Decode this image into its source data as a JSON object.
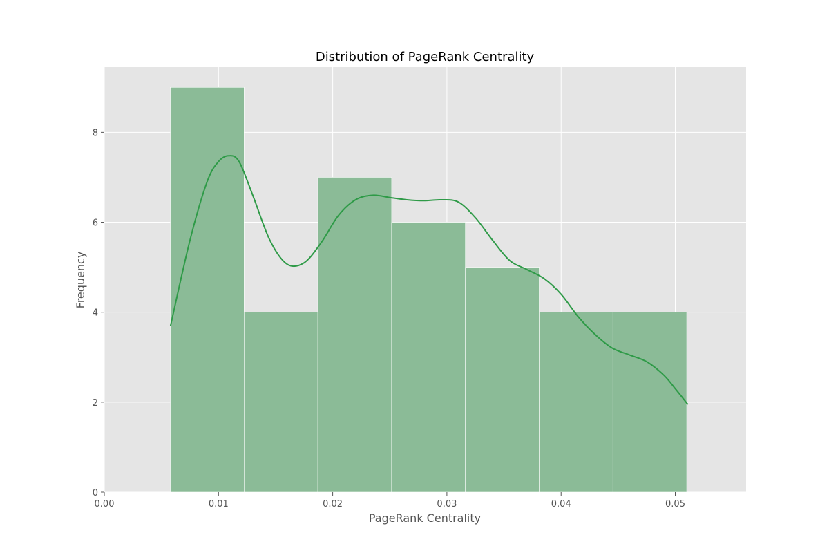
{
  "chart_data": {
    "type": "bar",
    "subtype": "histogram_with_kde",
    "title": "Distribution of PageRank Centrality",
    "xlabel": "PageRank Centrality",
    "ylabel": "Frequency",
    "xlim": [
      0.0,
      0.0562
    ],
    "ylim": [
      0,
      9.45
    ],
    "x_ticks": [
      0.0,
      0.01,
      0.02,
      0.03,
      0.04,
      0.05
    ],
    "x_tick_labels": [
      "0.00",
      "0.01",
      "0.02",
      "0.03",
      "0.04",
      "0.05"
    ],
    "y_ticks": [
      0,
      2,
      4,
      6,
      8
    ],
    "y_tick_labels": [
      "0",
      "2",
      "4",
      "6",
      "8"
    ],
    "grid": true,
    "style": "ggplot",
    "bins": [
      {
        "x0": 0.00578,
        "x1": 0.01224,
        "count": 9
      },
      {
        "x0": 0.01224,
        "x1": 0.0187,
        "count": 4
      },
      {
        "x0": 0.0187,
        "x1": 0.02516,
        "count": 7
      },
      {
        "x0": 0.02516,
        "x1": 0.03162,
        "count": 6
      },
      {
        "x0": 0.03162,
        "x1": 0.03808,
        "count": 5
      },
      {
        "x0": 0.03808,
        "x1": 0.04454,
        "count": 4
      },
      {
        "x0": 0.04454,
        "x1": 0.051,
        "count": 4
      }
    ],
    "kde": {
      "x": [
        0.0058,
        0.0075,
        0.009,
        0.01,
        0.0109,
        0.0118,
        0.013,
        0.0145,
        0.016,
        0.0175,
        0.019,
        0.0205,
        0.022,
        0.0235,
        0.025,
        0.0265,
        0.028,
        0.0295,
        0.031,
        0.0325,
        0.034,
        0.0355,
        0.037,
        0.0385,
        0.04,
        0.0415,
        0.043,
        0.0445,
        0.046,
        0.0475,
        0.049,
        0.05,
        0.0511
      ],
      "y": [
        3.7,
        5.6,
        6.9,
        7.35,
        7.48,
        7.35,
        6.6,
        5.6,
        5.07,
        5.1,
        5.55,
        6.15,
        6.5,
        6.6,
        6.55,
        6.5,
        6.48,
        6.5,
        6.45,
        6.1,
        5.6,
        5.15,
        4.95,
        4.75,
        4.4,
        3.9,
        3.5,
        3.2,
        3.05,
        2.9,
        2.6,
        2.3,
        1.95
      ]
    },
    "colors": {
      "plot_background": "#E5E5E5",
      "bar_fill": "#8BBB97",
      "kde_line": "#2E9A47"
    }
  }
}
